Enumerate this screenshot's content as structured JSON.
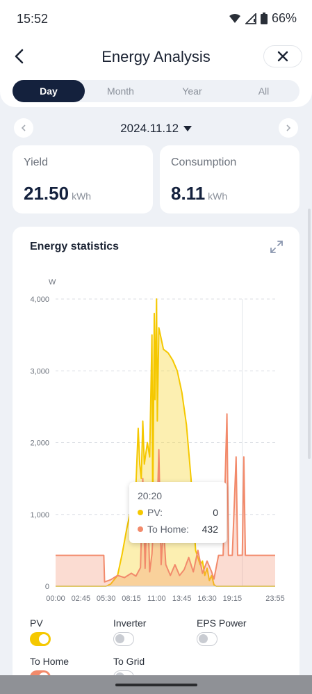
{
  "status": {
    "time": "15:52",
    "battery": "66%"
  },
  "header": {
    "title": "Energy Analysis",
    "tabs": [
      "Day",
      "Month",
      "Year",
      "All"
    ],
    "active_tab": "Day"
  },
  "date": {
    "value": "2024.11.12"
  },
  "summary": {
    "yield": {
      "label": "Yield",
      "value": "21.50",
      "unit": "kWh"
    },
    "consumption": {
      "label": "Consumption",
      "value": "8.11",
      "unit": "kWh"
    }
  },
  "stats": {
    "title": "Energy statistics"
  },
  "tooltip": {
    "time": "20:20",
    "rows": [
      {
        "label": "PV:",
        "value": "0"
      },
      {
        "label": "To Home:",
        "value": "432"
      }
    ]
  },
  "legend": {
    "items": [
      {
        "label": "PV",
        "on": true,
        "color": "#f5c800"
      },
      {
        "label": "Inverter",
        "on": false
      },
      {
        "label": "EPS Power",
        "on": false
      },
      {
        "label": "To Home",
        "on": true,
        "color": "#f28a6b"
      },
      {
        "label": "To Grid",
        "on": false
      }
    ]
  },
  "chart_data": {
    "type": "area",
    "ylabel": "W",
    "ylim": [
      0,
      4000
    ],
    "yticks": [
      "4,000",
      "3,000",
      "2,000",
      "1,000",
      "0"
    ],
    "xticks": [
      "00:00",
      "02:45",
      "05:30",
      "08:15",
      "11:00",
      "13:45",
      "16:30",
      "19:15",
      "23:55"
    ],
    "series": [
      {
        "name": "PV",
        "color": "#f5c800",
        "points": [
          [
            "00:00",
            0
          ],
          [
            "05:30",
            0
          ],
          [
            "06:00",
            30
          ],
          [
            "06:45",
            150
          ],
          [
            "07:15",
            450
          ],
          [
            "07:45",
            800
          ],
          [
            "08:15",
            1100
          ],
          [
            "08:45",
            1400
          ],
          [
            "09:00",
            2200
          ],
          [
            "09:10",
            1700
          ],
          [
            "09:20",
            1500
          ],
          [
            "09:30",
            2300
          ],
          [
            "09:40",
            1700
          ],
          [
            "10:00",
            2000
          ],
          [
            "10:15",
            1800
          ],
          [
            "10:30",
            3500
          ],
          [
            "10:35",
            1000
          ],
          [
            "10:45",
            3800
          ],
          [
            "10:50",
            2600
          ],
          [
            "11:00",
            4000
          ],
          [
            "11:05",
            2300
          ],
          [
            "11:15",
            3600
          ],
          [
            "11:25",
            3500
          ],
          [
            "11:45",
            3300
          ],
          [
            "12:15",
            3250
          ],
          [
            "12:45",
            3150
          ],
          [
            "13:15",
            3000
          ],
          [
            "13:45",
            2700
          ],
          [
            "14:15",
            2250
          ],
          [
            "14:45",
            1500
          ],
          [
            "15:15",
            500
          ],
          [
            "15:45",
            300
          ],
          [
            "16:00",
            350
          ],
          [
            "16:15",
            150
          ],
          [
            "16:30",
            250
          ],
          [
            "16:45",
            80
          ],
          [
            "17:00",
            150
          ],
          [
            "17:15",
            20
          ],
          [
            "17:30",
            0
          ],
          [
            "23:55",
            0
          ]
        ]
      },
      {
        "name": "To Home",
        "color": "#f28a6b",
        "points": [
          [
            "00:00",
            430
          ],
          [
            "05:15",
            430
          ],
          [
            "05:20",
            60
          ],
          [
            "06:00",
            90
          ],
          [
            "06:45",
            150
          ],
          [
            "07:30",
            120
          ],
          [
            "08:15",
            180
          ],
          [
            "08:45",
            140
          ],
          [
            "09:15",
            260
          ],
          [
            "09:30",
            1500
          ],
          [
            "09:45",
            250
          ],
          [
            "10:00",
            1300
          ],
          [
            "10:15",
            200
          ],
          [
            "10:30",
            450
          ],
          [
            "10:45",
            1100
          ],
          [
            "11:00",
            700
          ],
          [
            "11:15",
            1900
          ],
          [
            "11:30",
            300
          ],
          [
            "11:45",
            850
          ],
          [
            "12:00",
            300
          ],
          [
            "12:30",
            150
          ],
          [
            "13:00",
            300
          ],
          [
            "13:30",
            150
          ],
          [
            "14:00",
            230
          ],
          [
            "14:30",
            400
          ],
          [
            "15:00",
            200
          ],
          [
            "15:30",
            500
          ],
          [
            "16:00",
            180
          ],
          [
            "16:30",
            350
          ],
          [
            "17:00",
            200
          ],
          [
            "17:15",
            100
          ],
          [
            "17:45",
            430
          ],
          [
            "18:15",
            430
          ],
          [
            "18:40",
            2400
          ],
          [
            "18:50",
            430
          ],
          [
            "19:15",
            430
          ],
          [
            "19:40",
            1800
          ],
          [
            "19:50",
            430
          ],
          [
            "20:20",
            432
          ],
          [
            "20:30",
            1800
          ],
          [
            "20:40",
            430
          ],
          [
            "23:55",
            430
          ]
        ]
      }
    ],
    "grid": true
  }
}
